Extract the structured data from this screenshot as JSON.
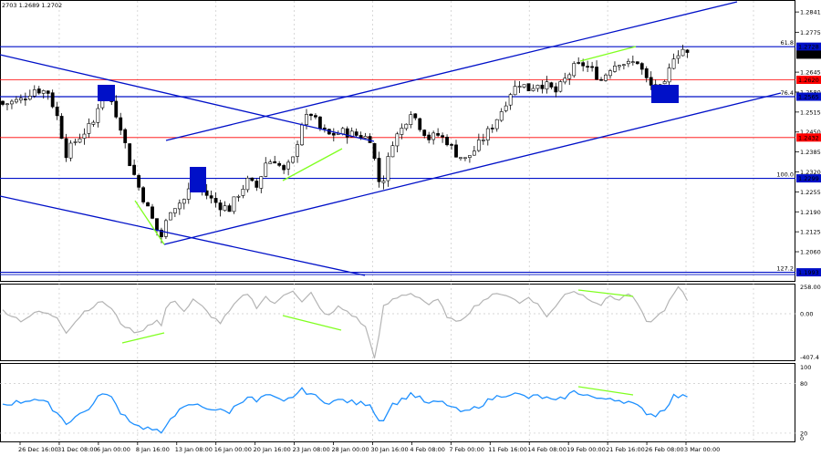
{
  "header": {
    "text": "2703 1.2689 1.2702"
  },
  "colors": {
    "bull": "#ffffff",
    "bear": "#000000",
    "candle_outline": "#000000",
    "blue_line": "#0010c8",
    "red_line": "#ff0000",
    "green": "#80ff20",
    "gray_osc": "#b4b4b4",
    "rsi_line": "#1e90ff",
    "grid": "#c8c8c8",
    "label_blue_bg": "#0010c8",
    "label_red_bg": "#ff0000",
    "label_black_bg": "#000000"
  },
  "chart_data": [
    {
      "type": "candlestick",
      "title": "",
      "xlabel": "",
      "ylabel": "",
      "ylim": [
        1.1965,
        1.288
      ],
      "x_tick_labels": [
        "26 Dec 16:00",
        "31 Dec 08:00",
        "6 Jan 00:00",
        "8 Jan 16:00",
        "13 Jan 08:00",
        "16 Jan 00:00",
        "20 Jan 16:00",
        "23 Jan 08:00",
        "28 Jan 00:00",
        "30 Jan 16:00",
        "4 Feb 08:00",
        "7 Feb 00:00",
        "11 Feb 16:00",
        "14 Feb 08:00",
        "19 Feb 00:00",
        "21 Feb 16:00",
        "26 Feb 08:00",
        "3 Mar 00:00"
      ],
      "y_ticks": [
        {
          "value": 1.2841,
          "label": "1.2841"
        },
        {
          "value": 1.2775,
          "label": "1.2775"
        },
        {
          "value": 1.2645,
          "label": "1.2645"
        },
        {
          "value": 1.258,
          "label": "1.2580"
        },
        {
          "value": 1.2515,
          "label": "1.2515"
        },
        {
          "value": 1.245,
          "label": "1.2450"
        },
        {
          "value": 1.2385,
          "label": "1.2385"
        },
        {
          "value": 1.232,
          "label": "1.2320"
        },
        {
          "value": 1.2255,
          "label": "1.2255"
        },
        {
          "value": 1.219,
          "label": "1.2190"
        },
        {
          "value": 1.2125,
          "label": "1.2125"
        },
        {
          "value": 1.206,
          "label": "1.2060"
        }
      ],
      "price_tags": [
        {
          "value": 1.2728,
          "label": "1.2728",
          "style": "blue"
        },
        {
          "value": 1.2702,
          "label": "1.2702",
          "style": "black"
        },
        {
          "value": 1.262,
          "label": "1.2620",
          "style": "red"
        },
        {
          "value": 1.2565,
          "label": "1.2565",
          "style": "blue"
        },
        {
          "value": 1.2432,
          "label": "1.2432",
          "style": "red"
        },
        {
          "value": 1.2299,
          "label": "1.2299",
          "style": "blue"
        },
        {
          "value": 1.1993,
          "label": "1.1993",
          "style": "blue"
        }
      ],
      "levels": [
        {
          "value": 1.2728,
          "color": "blue",
          "fib": "61.8"
        },
        {
          "value": 1.262,
          "color": "red",
          "fib": ""
        },
        {
          "value": 1.2565,
          "color": "blue",
          "fib": "76.4"
        },
        {
          "value": 1.2432,
          "color": "red",
          "fib": ""
        },
        {
          "value": 1.2299,
          "color": "blue",
          "fib": "100.0"
        },
        {
          "value": 1.1993,
          "color": "blue",
          "fib": "127.2"
        }
      ],
      "anchors": [
        [
          0,
          1.254
        ],
        [
          4,
          1.2555
        ],
        [
          7,
          1.259
        ],
        [
          10,
          1.258
        ],
        [
          12,
          1.25
        ],
        [
          14,
          1.238
        ],
        [
          16,
          1.242
        ],
        [
          18,
          1.245
        ],
        [
          20,
          1.248
        ],
        [
          22,
          1.259
        ],
        [
          24,
          1.255
        ],
        [
          26,
          1.247
        ],
        [
          28,
          1.235
        ],
        [
          30,
          1.227
        ],
        [
          32,
          1.22
        ],
        [
          34,
          1.213
        ],
        [
          35,
          1.211
        ],
        [
          37,
          1.22
        ],
        [
          40,
          1.223
        ],
        [
          42,
          1.229
        ],
        [
          44,
          1.226
        ],
        [
          46,
          1.223
        ],
        [
          48,
          1.221
        ],
        [
          50,
          1.22
        ],
        [
          52,
          1.225
        ],
        [
          54,
          1.229
        ],
        [
          56,
          1.227
        ],
        [
          58,
          1.235
        ],
        [
          60,
          1.236
        ],
        [
          62,
          1.232
        ],
        [
          64,
          1.236
        ],
        [
          66,
          1.248
        ],
        [
          68,
          1.251
        ],
        [
          70,
          1.246
        ],
        [
          72,
          1.244
        ],
        [
          75,
          1.245
        ],
        [
          78,
          1.244
        ],
        [
          81,
          1.243
        ],
        [
          83,
          1.229
        ],
        [
          84,
          1.23
        ],
        [
          86,
          1.242
        ],
        [
          88,
          1.246
        ],
        [
          90,
          1.252
        ],
        [
          92,
          1.247
        ],
        [
          94,
          1.243
        ],
        [
          96,
          1.244
        ],
        [
          98,
          1.242
        ],
        [
          100,
          1.238
        ],
        [
          102,
          1.236
        ],
        [
          104,
          1.239
        ],
        [
          106,
          1.243
        ],
        [
          108,
          1.247
        ],
        [
          110,
          1.252
        ],
        [
          112,
          1.258
        ],
        [
          114,
          1.261
        ],
        [
          116,
          1.259
        ],
        [
          118,
          1.261
        ],
        [
          120,
          1.26
        ],
        [
          122,
          1.258
        ],
        [
          124,
          1.262
        ],
        [
          126,
          1.266
        ],
        [
          128,
          1.267
        ],
        [
          130,
          1.265
        ],
        [
          132,
          1.262
        ],
        [
          134,
          1.266
        ],
        [
          136,
          1.268
        ],
        [
          138,
          1.267
        ],
        [
          140,
          1.268
        ],
        [
          142,
          1.262
        ],
        [
          144,
          1.258
        ],
        [
          146,
          1.26
        ],
        [
          148,
          1.27
        ],
        [
          150,
          1.272
        ],
        [
          151,
          1.2702
        ]
      ],
      "candle_count": 152
    },
    {
      "type": "line",
      "title": "",
      "xlabel": "",
      "ylabel": "",
      "ylim": [
        -410,
        265
      ],
      "y_ticks": [
        {
          "value": 258.0074,
          "label": "258.0074"
        },
        {
          "value": 0.0,
          "label": "0.00"
        },
        {
          "value": -407.4,
          "label": "-407.4"
        }
      ],
      "anchors": [
        [
          0,
          30
        ],
        [
          4,
          -60
        ],
        [
          8,
          20
        ],
        [
          12,
          -30
        ],
        [
          14,
          -160
        ],
        [
          18,
          20
        ],
        [
          22,
          110
        ],
        [
          24,
          40
        ],
        [
          26,
          -80
        ],
        [
          28,
          -140
        ],
        [
          30,
          -170
        ],
        [
          32,
          -100
        ],
        [
          34,
          -60
        ],
        [
          35,
          -110
        ],
        [
          36,
          50
        ],
        [
          38,
          120
        ],
        [
          40,
          20
        ],
        [
          42,
          120
        ],
        [
          44,
          60
        ],
        [
          46,
          -20
        ],
        [
          48,
          -80
        ],
        [
          52,
          120
        ],
        [
          54,
          180
        ],
        [
          56,
          60
        ],
        [
          58,
          150
        ],
        [
          60,
          80
        ],
        [
          62,
          170
        ],
        [
          64,
          210
        ],
        [
          66,
          100
        ],
        [
          68,
          180
        ],
        [
          70,
          40
        ],
        [
          72,
          -20
        ],
        [
          74,
          60
        ],
        [
          76,
          20
        ],
        [
          78,
          -40
        ],
        [
          80,
          -120
        ],
        [
          82,
          -380
        ],
        [
          83,
          -200
        ],
        [
          84,
          60
        ],
        [
          86,
          120
        ],
        [
          88,
          160
        ],
        [
          90,
          180
        ],
        [
          92,
          140
        ],
        [
          94,
          80
        ],
        [
          96,
          120
        ],
        [
          98,
          -20
        ],
        [
          100,
          -80
        ],
        [
          102,
          -20
        ],
        [
          104,
          60
        ],
        [
          106,
          120
        ],
        [
          108,
          160
        ],
        [
          110,
          180
        ],
        [
          112,
          150
        ],
        [
          114,
          90
        ],
        [
          116,
          150
        ],
        [
          118,
          80
        ],
        [
          120,
          -20
        ],
        [
          122,
          60
        ],
        [
          124,
          180
        ],
        [
          126,
          200
        ],
        [
          128,
          160
        ],
        [
          130,
          120
        ],
        [
          132,
          80
        ],
        [
          134,
          160
        ],
        [
          136,
          120
        ],
        [
          138,
          180
        ],
        [
          140,
          90
        ],
        [
          142,
          -80
        ],
        [
          144,
          -40
        ],
        [
          146,
          40
        ],
        [
          148,
          170
        ],
        [
          149,
          230
        ],
        [
          150,
          180
        ],
        [
          151,
          120
        ]
      ]
    },
    {
      "type": "line",
      "title": "",
      "xlabel": "",
      "ylabel": "",
      "ylim": [
        10,
        105
      ],
      "y_ticks": [
        {
          "value": 100,
          "label": "100"
        },
        {
          "value": 80,
          "label": "80"
        },
        {
          "value": 20,
          "label": "20"
        },
        {
          "value": 0,
          "label": "0"
        }
      ],
      "anchors": [
        [
          0,
          55
        ],
        [
          4,
          58
        ],
        [
          7,
          62
        ],
        [
          10,
          55
        ],
        [
          12,
          45
        ],
        [
          14,
          32
        ],
        [
          16,
          40
        ],
        [
          18,
          46
        ],
        [
          20,
          55
        ],
        [
          22,
          70
        ],
        [
          24,
          62
        ],
        [
          26,
          46
        ],
        [
          28,
          36
        ],
        [
          30,
          28
        ],
        [
          32,
          26
        ],
        [
          34,
          22
        ],
        [
          35,
          18
        ],
        [
          37,
          40
        ],
        [
          40,
          50
        ],
        [
          42,
          55
        ],
        [
          44,
          52
        ],
        [
          46,
          50
        ],
        [
          48,
          47
        ],
        [
          50,
          46
        ],
        [
          52,
          56
        ],
        [
          54,
          65
        ],
        [
          56,
          58
        ],
        [
          58,
          66
        ],
        [
          60,
          62
        ],
        [
          62,
          57
        ],
        [
          64,
          65
        ],
        [
          66,
          72
        ],
        [
          68,
          68
        ],
        [
          70,
          60
        ],
        [
          72,
          58
        ],
        [
          75,
          60
        ],
        [
          78,
          56
        ],
        [
          81,
          56
        ],
        [
          83,
          35
        ],
        [
          84,
          38
        ],
        [
          86,
          55
        ],
        [
          88,
          60
        ],
        [
          90,
          68
        ],
        [
          92,
          62
        ],
        [
          94,
          55
        ],
        [
          96,
          58
        ],
        [
          98,
          55
        ],
        [
          100,
          48
        ],
        [
          102,
          45
        ],
        [
          104,
          50
        ],
        [
          106,
          56
        ],
        [
          108,
          62
        ],
        [
          110,
          66
        ],
        [
          112,
          68
        ],
        [
          114,
          66
        ],
        [
          116,
          63
        ],
        [
          118,
          65
        ],
        [
          120,
          62
        ],
        [
          122,
          58
        ],
        [
          124,
          64
        ],
        [
          126,
          70
        ],
        [
          128,
          68
        ],
        [
          130,
          64
        ],
        [
          132,
          60
        ],
        [
          134,
          63
        ],
        [
          136,
          60
        ],
        [
          138,
          58
        ],
        [
          140,
          52
        ],
        [
          142,
          45
        ],
        [
          144,
          42
        ],
        [
          146,
          50
        ],
        [
          148,
          65
        ],
        [
          150,
          64
        ],
        [
          151,
          66
        ]
      ]
    }
  ]
}
